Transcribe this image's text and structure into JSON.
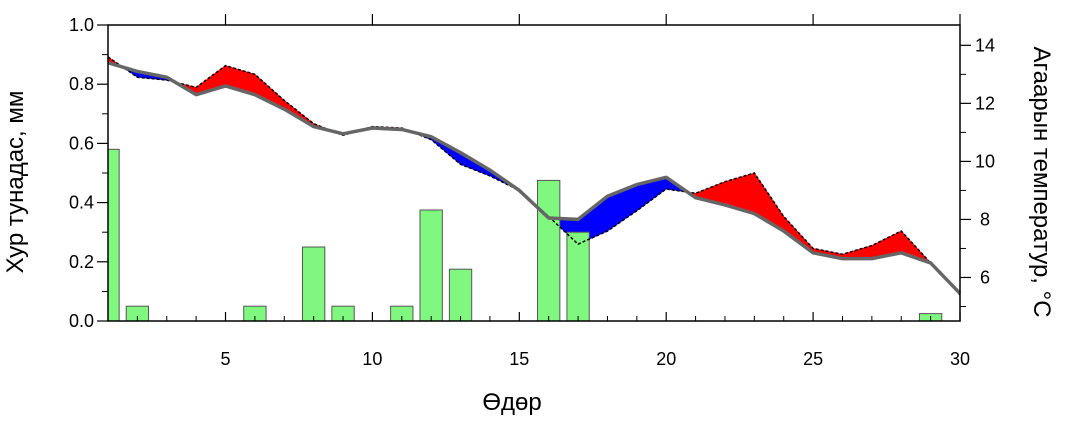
{
  "chart_data": {
    "type": "bar+line",
    "xlabel": "Өдөр",
    "ylabel_left": "Хур тунадас, мм",
    "ylabel_right": "Агаарын температур, °C",
    "xlim": [
      1,
      30
    ],
    "ylim_left": [
      0,
      1.0
    ],
    "ylim_right": [
      4.5,
      14.7
    ],
    "x_ticks": [
      5,
      10,
      15,
      20,
      25,
      30
    ],
    "y_ticks_left": [
      "0.0",
      "0.2",
      "0.4",
      "0.6",
      "0.8",
      "1.0"
    ],
    "y_ticks_right": [
      6,
      8,
      10,
      12,
      14
    ],
    "x_tick_labels": [
      "5",
      "10",
      "15",
      "20",
      "25",
      "30"
    ],
    "y_tick_labels_left": [
      "0.0",
      "0.2",
      "0.4",
      "0.6",
      "0.8",
      "1.0"
    ],
    "y_tick_labels_right": [
      "6",
      "8",
      "10",
      "12",
      "14"
    ],
    "precip_bars": {
      "x": [
        1,
        2,
        6,
        8,
        9,
        11,
        12,
        13,
        16,
        17,
        29
      ],
      "values": [
        0.58,
        0.05,
        0.05,
        0.25,
        0.05,
        0.05,
        0.375,
        0.175,
        0.475,
        0.3,
        0.025
      ],
      "color": "#80f880"
    },
    "temperature_normal": {
      "x": [
        1,
        2,
        3,
        4,
        5,
        6,
        7,
        8,
        9,
        10,
        11,
        12,
        13,
        14,
        15,
        16,
        17,
        18,
        19,
        20,
        21,
        22,
        23,
        24,
        25,
        26,
        27,
        28,
        29,
        30
      ],
      "values": [
        13.4,
        13.1,
        12.9,
        12.3,
        12.6,
        12.3,
        11.8,
        11.2,
        10.95,
        11.15,
        11.1,
        10.85,
        10.3,
        9.7,
        9.0,
        8.05,
        8.0,
        8.8,
        9.2,
        9.45,
        8.75,
        8.5,
        8.2,
        7.6,
        6.85,
        6.65,
        6.65,
        6.85,
        6.5,
        5.45
      ],
      "color": "#666666"
    },
    "temperature_actual": {
      "x": [
        1,
        2,
        3,
        4,
        5,
        6,
        7,
        8,
        9,
        10,
        11,
        12,
        13,
        14,
        15,
        16,
        17,
        18,
        19,
        20,
        21,
        22,
        23,
        24,
        25,
        26,
        27,
        28,
        29,
        30
      ],
      "values": [
        13.6,
        12.9,
        12.8,
        12.55,
        13.3,
        13.0,
        12.1,
        11.3,
        10.9,
        11.2,
        11.15,
        10.75,
        9.9,
        9.5,
        9.0,
        8.1,
        7.15,
        7.6,
        8.3,
        9.05,
        8.9,
        9.3,
        9.6,
        8.1,
        7.0,
        6.8,
        7.1,
        7.6,
        6.5,
        5.4
      ],
      "color": "#000000"
    },
    "fill_colors": {
      "above": "#ff0000",
      "below": "#0000ff"
    }
  }
}
